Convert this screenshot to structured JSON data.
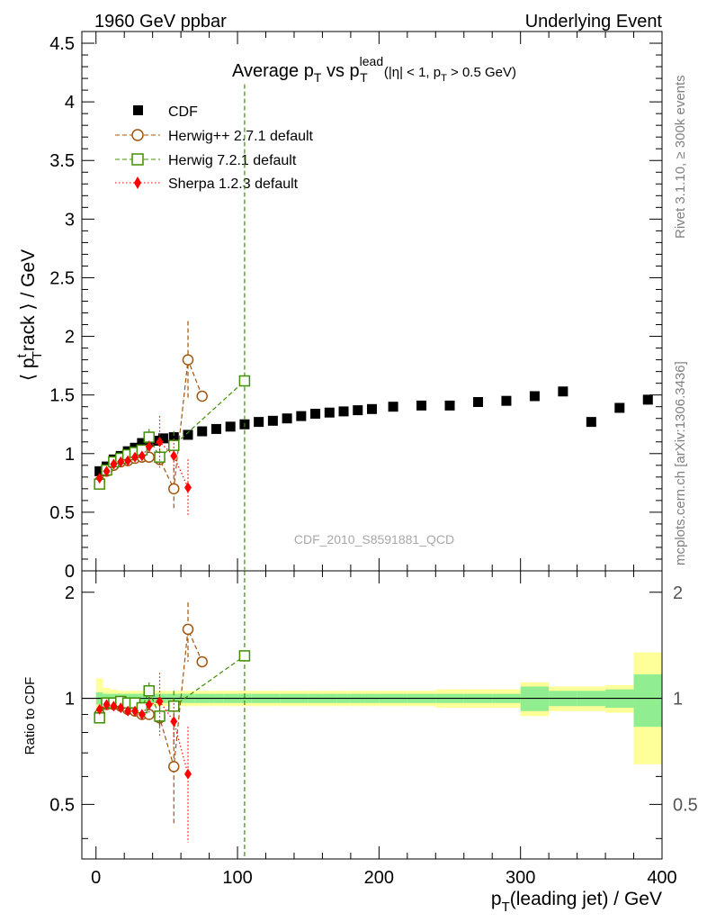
{
  "header": {
    "left": "1960 GeV ppbar",
    "right": "Underlying Event"
  },
  "side_labels": {
    "rivet": "Rivet 3.1.10, ≥ 300k events",
    "mcplots": "mcplots.cern.ch [arXiv:1306.3436]"
  },
  "watermark": "CDF_2010_S8591881_QCD",
  "colors": {
    "cdf": "#000000",
    "herwigpp": "#a0560f",
    "herwig7": "#3f8f00",
    "sherpa": "#ff0000",
    "band_outer": "#ffff99",
    "band_inner": "#90ee90"
  },
  "chart_data": [
    {
      "type": "scatter",
      "panel": "main",
      "title": "Average p_T vs p_T^lead (|η| < 1, p_T > 0.5 GeV)",
      "title_parts": {
        "a": "Average p",
        "b": "T",
        "c": " vs p",
        "d": "lead",
        "e": "T",
        "f": " (|η| < 1, p",
        "g": "T",
        "h": " > 0.5 GeV)"
      },
      "ylabel": "⟨ p_T^track ⟩ / GeV",
      "ylabel_parts": {
        "a": "⟨ p",
        "b": "t",
        "c": "T",
        "d": "rack ⟩ / GeV"
      },
      "xlim": [
        -10,
        400
      ],
      "ylim": [
        0,
        4.6
      ],
      "yticks": [
        0,
        0.5,
        1,
        1.5,
        2,
        2.5,
        3,
        3.5,
        4,
        4.5
      ],
      "ytick_labels": [
        "0",
        "0.5",
        "1",
        "1.5",
        "2",
        "2.5",
        "3",
        "3.5",
        "4",
        "4.5"
      ],
      "legend": [
        "CDF",
        "Herwig++ 2.7.1 default",
        "Herwig 7.2.1 default",
        "Sherpa 1.2.3 default"
      ],
      "series": [
        {
          "name": "CDF",
          "style": "data",
          "x": [
            2.5,
            7.5,
            12.5,
            17.5,
            22.5,
            27.5,
            32.5,
            37.5,
            42.5,
            47.5,
            55,
            65,
            75,
            85,
            95,
            105,
            115,
            125,
            135,
            145,
            155,
            165,
            175,
            185,
            195,
            210,
            230,
            250,
            270,
            290,
            310,
            330,
            350,
            370,
            390
          ],
          "y": [
            0.85,
            0.89,
            0.95,
            0.98,
            1.02,
            1.05,
            1.09,
            1.1,
            1.11,
            1.13,
            1.14,
            1.16,
            1.19,
            1.21,
            1.23,
            1.25,
            1.27,
            1.28,
            1.3,
            1.32,
            1.34,
            1.35,
            1.36,
            1.37,
            1.38,
            1.4,
            1.41,
            1.41,
            1.44,
            1.45,
            1.49,
            1.53,
            1.27,
            1.39,
            1.46
          ],
          "err": [
            0.01,
            0.01,
            0.01,
            0.01,
            0.01,
            0.01,
            0.01,
            0.01,
            0.01,
            0.01,
            0.01,
            0.01,
            0.01,
            0.01,
            0.01,
            0.01,
            0.01,
            0.01,
            0.01,
            0.01,
            0.01,
            0.01,
            0.01,
            0.01,
            0.01,
            0.01,
            0.01,
            0.01,
            0.01,
            0.01,
            0.02,
            0.02,
            0.02,
            0.02,
            0.03
          ]
        },
        {
          "name": "Herwig++ 2.7.1 default",
          "style": "circle-dashed",
          "x": [
            2.5,
            7.5,
            12.5,
            17.5,
            22.5,
            27.5,
            32.5,
            37.5,
            45,
            55,
            65,
            75
          ],
          "y": [
            0.76,
            0.85,
            0.9,
            0.93,
            0.94,
            0.96,
            0.97,
            0.97,
            0.95,
            0.7,
            1.8,
            1.49
          ],
          "err": [
            0.01,
            0.01,
            0.01,
            0.01,
            0.02,
            0.02,
            0.02,
            0.04,
            0.06,
            0.18,
            0.33,
            0
          ]
        },
        {
          "name": "Herwig 7.2.1 default",
          "style": "square-dashed",
          "x": [
            2.5,
            7.5,
            12.5,
            17.5,
            22.5,
            27.5,
            32.5,
            37.5,
            45,
            55,
            105
          ],
          "y": [
            0.74,
            0.86,
            0.93,
            0.96,
            0.99,
            1.01,
            1.03,
            1.14,
            0.97,
            1.07,
            1.62
          ],
          "err": [
            0.01,
            0.01,
            0.01,
            0.01,
            0.02,
            0.02,
            0.03,
            0.07,
            0.07,
            0.12,
            2.53
          ]
        },
        {
          "name": "Sherpa 1.2.3 default",
          "style": "diamond-dotted",
          "x": [
            2.5,
            7.5,
            12.5,
            17.5,
            22.5,
            27.5,
            32.5,
            37.5,
            45,
            55,
            65
          ],
          "y": [
            0.79,
            0.85,
            0.91,
            0.93,
            0.94,
            0.97,
            0.98,
            1.06,
            1.1,
            0.98,
            0.71
          ],
          "err": [
            0.01,
            0.01,
            0.01,
            0.01,
            0.02,
            0.02,
            0.03,
            0.05,
            0.22,
            0.14,
            0.24
          ]
        }
      ]
    },
    {
      "type": "scatter",
      "panel": "ratio",
      "ylabel": "Ratio to CDF",
      "xlabel": "p_T(leading jet) / GeV",
      "xlabel_parts": {
        "a": "p",
        "b": "T",
        "c": "(leading jet) / GeV"
      },
      "xlim": [
        -10,
        400
      ],
      "ylim": [
        0.35,
        2.3
      ],
      "yscale": "log",
      "yticks": [
        0.5,
        1,
        2
      ],
      "ytick_labels": [
        "0.5",
        "1",
        "2"
      ],
      "xticks": [
        0,
        100,
        200,
        300,
        400
      ],
      "xtick_labels": [
        "0",
        "100",
        "200",
        "300",
        "400"
      ],
      "bands": {
        "edges": [
          0,
          5,
          10,
          15,
          20,
          25,
          30,
          35,
          40,
          45,
          50,
          60,
          70,
          80,
          90,
          100,
          110,
          120,
          130,
          140,
          150,
          160,
          170,
          180,
          190,
          200,
          220,
          240,
          260,
          280,
          300,
          320,
          340,
          360,
          380,
          400
        ],
        "outer": [
          0.14,
          0.07,
          0.06,
          0.05,
          0.05,
          0.05,
          0.05,
          0.05,
          0.05,
          0.05,
          0.05,
          0.05,
          0.05,
          0.05,
          0.05,
          0.05,
          0.05,
          0.05,
          0.05,
          0.05,
          0.05,
          0.05,
          0.05,
          0.05,
          0.05,
          0.05,
          0.05,
          0.06,
          0.06,
          0.06,
          0.11,
          0.08,
          0.08,
          0.09,
          0.35
        ],
        "inner": [
          0.04,
          0.03,
          0.03,
          0.03,
          0.03,
          0.03,
          0.03,
          0.03,
          0.03,
          0.03,
          0.03,
          0.03,
          0.03,
          0.03,
          0.03,
          0.03,
          0.03,
          0.03,
          0.03,
          0.03,
          0.03,
          0.03,
          0.03,
          0.03,
          0.03,
          0.03,
          0.03,
          0.03,
          0.03,
          0.03,
          0.08,
          0.05,
          0.05,
          0.06,
          0.17
        ]
      },
      "series": [
        {
          "name": "Herwig++ 2.7.1 default",
          "x": [
            2.5,
            7.5,
            12.5,
            17.5,
            22.5,
            27.5,
            32.5,
            37.5,
            45,
            55,
            65,
            75
          ],
          "y": [
            0.9,
            0.96,
            0.96,
            0.95,
            0.93,
            0.92,
            0.9,
            0.9,
            0.88,
            0.64,
            1.57,
            1.27
          ],
          "err": [
            0.01,
            0.01,
            0.01,
            0.01,
            0.02,
            0.02,
            0.02,
            0.04,
            0.06,
            0.2,
            0.3,
            0
          ]
        },
        {
          "name": "Herwig 7.2.1 default",
          "x": [
            2.5,
            7.5,
            12.5,
            17.5,
            22.5,
            27.5,
            32.5,
            37.5,
            45,
            55,
            105
          ],
          "y": [
            0.88,
            0.97,
            0.97,
            0.98,
            0.97,
            0.97,
            0.94,
            1.05,
            0.89,
            0.95,
            1.32
          ],
          "err": [
            0.01,
            0.01,
            0.01,
            0.01,
            0.02,
            0.02,
            0.03,
            0.06,
            0.06,
            0.1,
            2.0
          ]
        },
        {
          "name": "Sherpa 1.2.3 default",
          "x": [
            2.5,
            7.5,
            12.5,
            17.5,
            22.5,
            27.5,
            32.5,
            37.5,
            45,
            55,
            65
          ],
          "y": [
            0.93,
            0.96,
            0.95,
            0.94,
            0.92,
            0.92,
            0.9,
            0.96,
            0.98,
            0.86,
            0.61
          ],
          "err": [
            0.01,
            0.01,
            0.01,
            0.01,
            0.02,
            0.02,
            0.03,
            0.05,
            0.2,
            0.13,
            0.22
          ]
        }
      ]
    }
  ]
}
